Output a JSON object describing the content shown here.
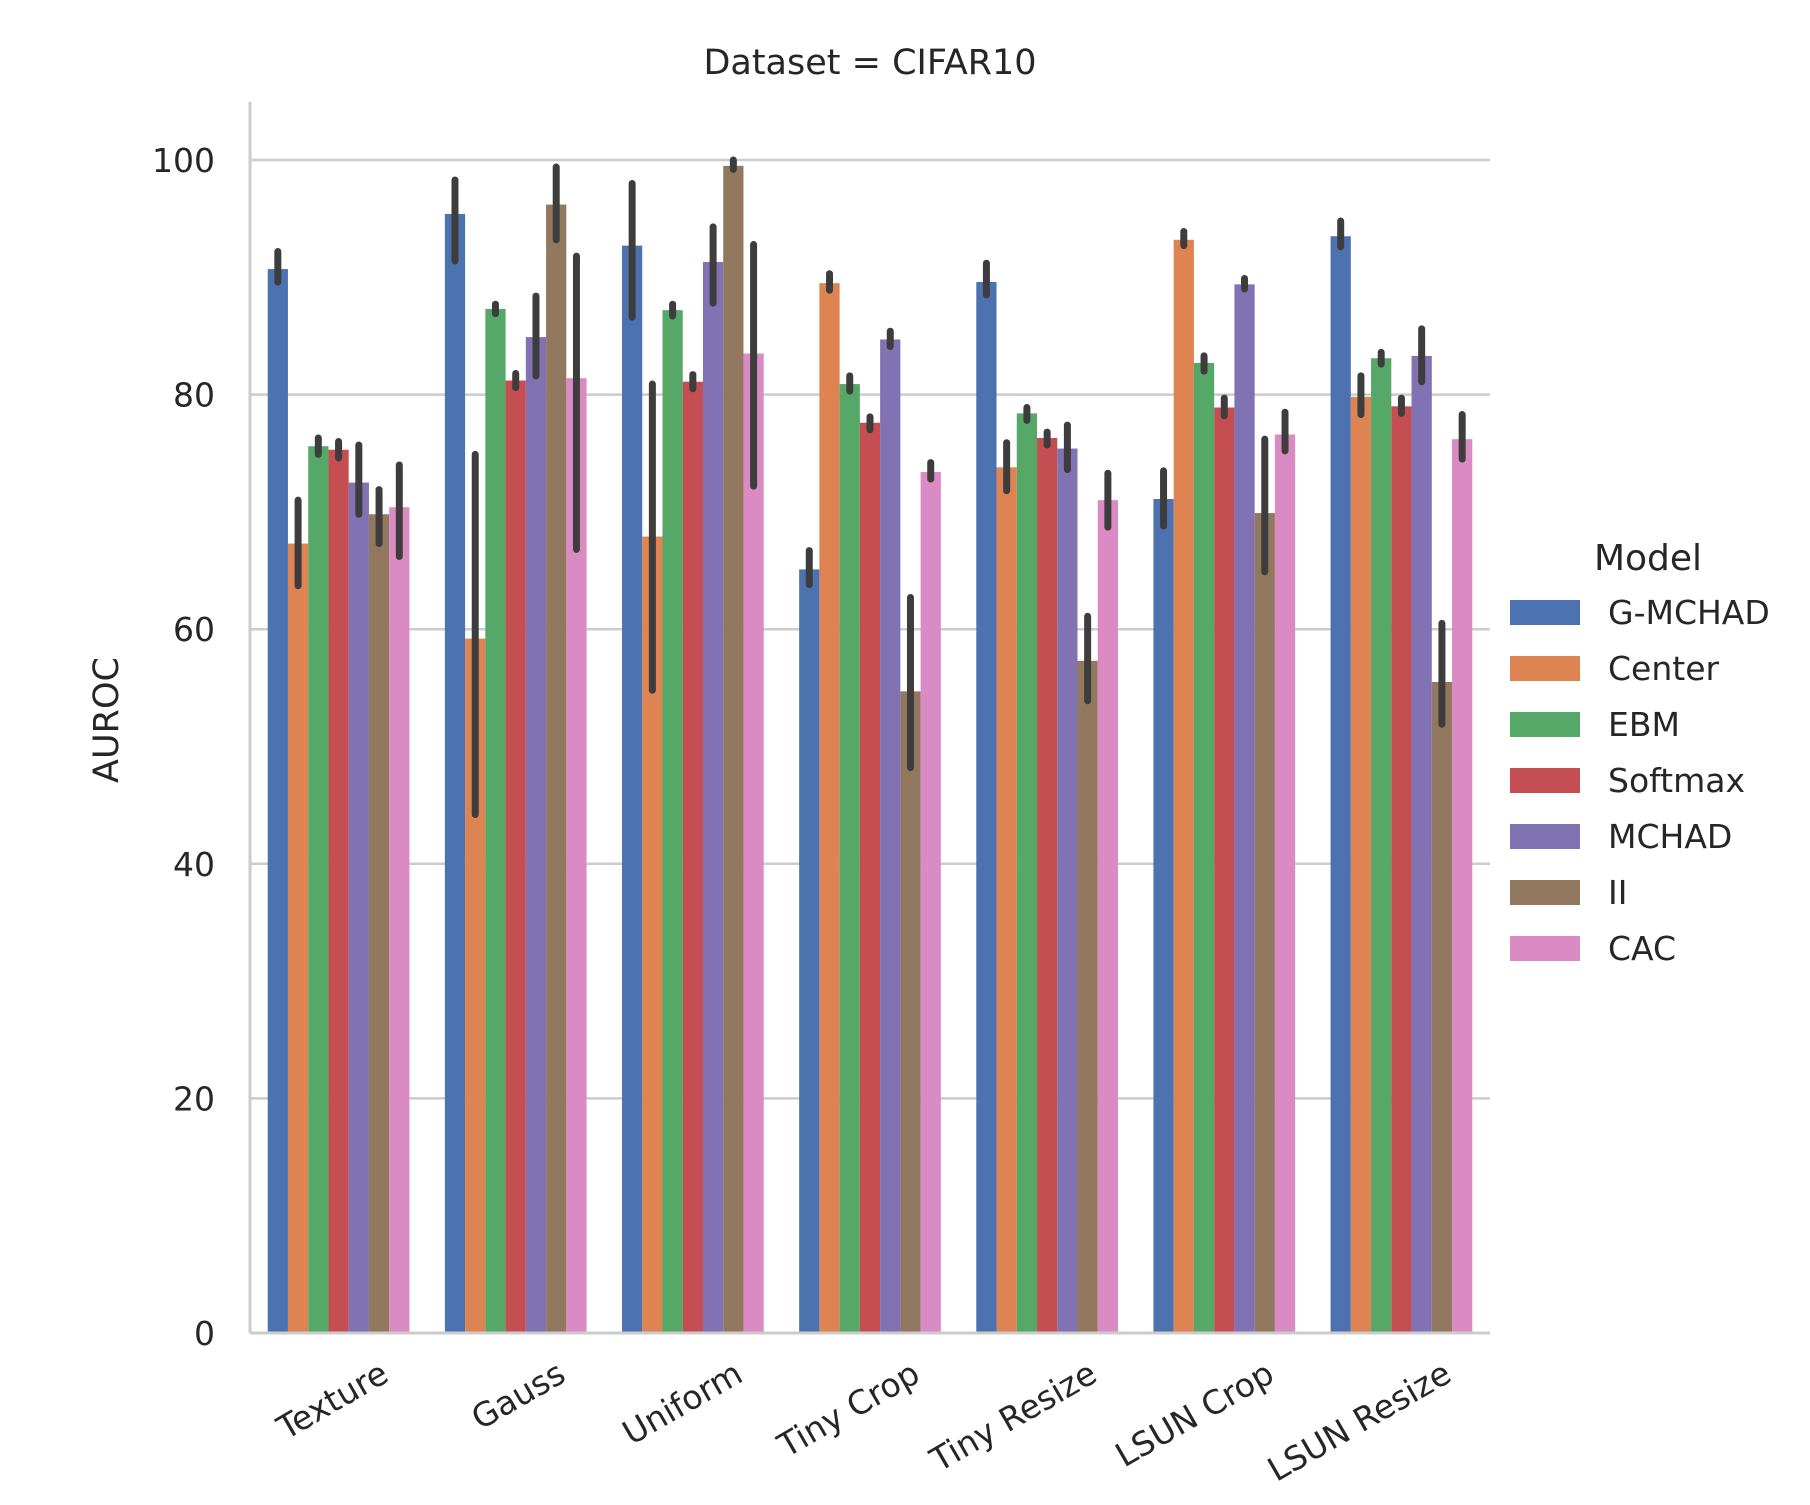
{
  "chart_data": {
    "type": "bar",
    "title": "Dataset = CIFAR10",
    "xlabel": "",
    "ylabel": "AUROC",
    "ylim": [
      0,
      105
    ],
    "yticks": [
      0,
      20,
      40,
      60,
      80,
      100
    ],
    "grid": "horizontal",
    "legend": {
      "title": "Model",
      "position": "right"
    },
    "categories": [
      "Texture",
      "Gauss",
      "Uniform",
      "Tiny Crop",
      "Tiny Resize",
      "LSUN Crop",
      "LSUN Resize"
    ],
    "series": [
      {
        "name": "G-MCHAD",
        "color": "#4c72b0",
        "values": [
          90.7,
          95.4,
          92.7,
          65.1,
          89.6,
          71.1,
          93.5
        ],
        "ci": [
          [
            89.6,
            92.2
          ],
          [
            91.4,
            98.3
          ],
          [
            86.6,
            98.0
          ],
          [
            63.8,
            66.7
          ],
          [
            88.5,
            91.2
          ],
          [
            68.8,
            73.5
          ],
          [
            92.6,
            94.8
          ]
        ]
      },
      {
        "name": "Center",
        "color": "#dd8452",
        "values": [
          67.3,
          59.2,
          67.9,
          89.5,
          73.8,
          93.2,
          79.8
        ],
        "ci": [
          [
            63.7,
            71.0
          ],
          [
            44.2,
            74.9
          ],
          [
            54.8,
            80.9
          ],
          [
            88.9,
            90.3
          ],
          [
            71.8,
            75.9
          ],
          [
            92.7,
            93.9
          ],
          [
            78.3,
            81.6
          ]
        ]
      },
      {
        "name": "EBM",
        "color": "#55a868",
        "values": [
          75.6,
          87.3,
          87.2,
          80.9,
          78.4,
          82.7,
          83.1
        ],
        "ci": [
          [
            74.9,
            76.3
          ],
          [
            86.9,
            87.7
          ],
          [
            86.7,
            87.7
          ],
          [
            80.3,
            81.6
          ],
          [
            77.8,
            78.9
          ],
          [
            82.0,
            83.3
          ],
          [
            82.6,
            83.6
          ]
        ]
      },
      {
        "name": "Softmax",
        "color": "#c44e52",
        "values": [
          75.3,
          81.2,
          81.1,
          77.6,
          76.3,
          78.9,
          79.0
        ],
        "ci": [
          [
            74.6,
            76.0
          ],
          [
            80.6,
            81.8
          ],
          [
            80.5,
            81.7
          ],
          [
            77.0,
            78.1
          ],
          [
            75.7,
            76.8
          ],
          [
            78.2,
            79.7
          ],
          [
            78.4,
            79.7
          ]
        ]
      },
      {
        "name": "MCHAD",
        "color": "#8172b3",
        "values": [
          72.5,
          84.9,
          91.3,
          84.7,
          75.4,
          89.4,
          83.3
        ],
        "ci": [
          [
            69.8,
            75.7
          ],
          [
            81.6,
            88.4
          ],
          [
            87.8,
            94.3
          ],
          [
            84.1,
            85.4
          ],
          [
            73.6,
            77.4
          ],
          [
            89.0,
            89.9
          ],
          [
            81.1,
            85.6
          ]
        ]
      },
      {
        "name": "II",
        "color": "#937860",
        "values": [
          69.8,
          96.2,
          99.5,
          54.7,
          57.3,
          69.9,
          55.5
        ],
        "ci": [
          [
            67.3,
            71.9
          ],
          [
            93.2,
            99.4
          ],
          [
            99.2,
            100.0
          ],
          [
            48.2,
            62.7
          ],
          [
            53.9,
            61.1
          ],
          [
            64.9,
            76.2
          ],
          [
            51.9,
            60.5
          ]
        ]
      },
      {
        "name": "CAC",
        "color": "#da8bc3",
        "values": [
          70.4,
          81.4,
          83.5,
          73.4,
          71.0,
          76.6,
          76.2
        ],
        "ci": [
          [
            66.2,
            74.0
          ],
          [
            66.8,
            91.8
          ],
          [
            72.2,
            92.8
          ],
          [
            72.8,
            74.2
          ],
          [
            68.7,
            73.3
          ],
          [
            75.2,
            78.5
          ],
          [
            74.5,
            78.3
          ]
        ]
      }
    ]
  }
}
